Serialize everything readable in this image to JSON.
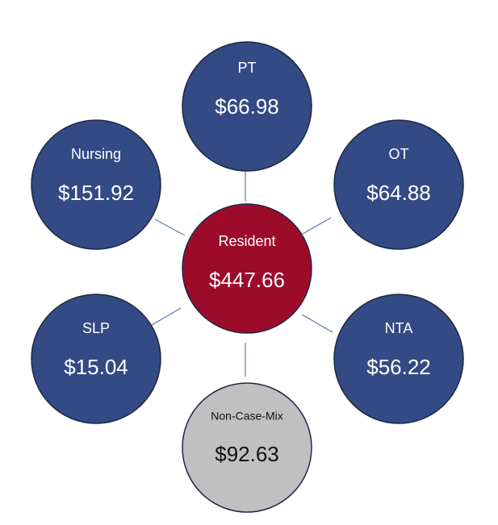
{
  "nodes": [
    {
      "label": "PT",
      "value": "$66.98"
    },
    {
      "label": "Nursing",
      "value": "$151.92"
    },
    {
      "label": "OT",
      "value": "$64.88"
    },
    {
      "label": "Resident",
      "value": "$447.66"
    },
    {
      "label": "SLP",
      "value": "$15.04"
    },
    {
      "label": "NTA",
      "value": "$56.22"
    },
    {
      "label": "Non-Case-Mix",
      "value": "$92.63"
    }
  ]
}
